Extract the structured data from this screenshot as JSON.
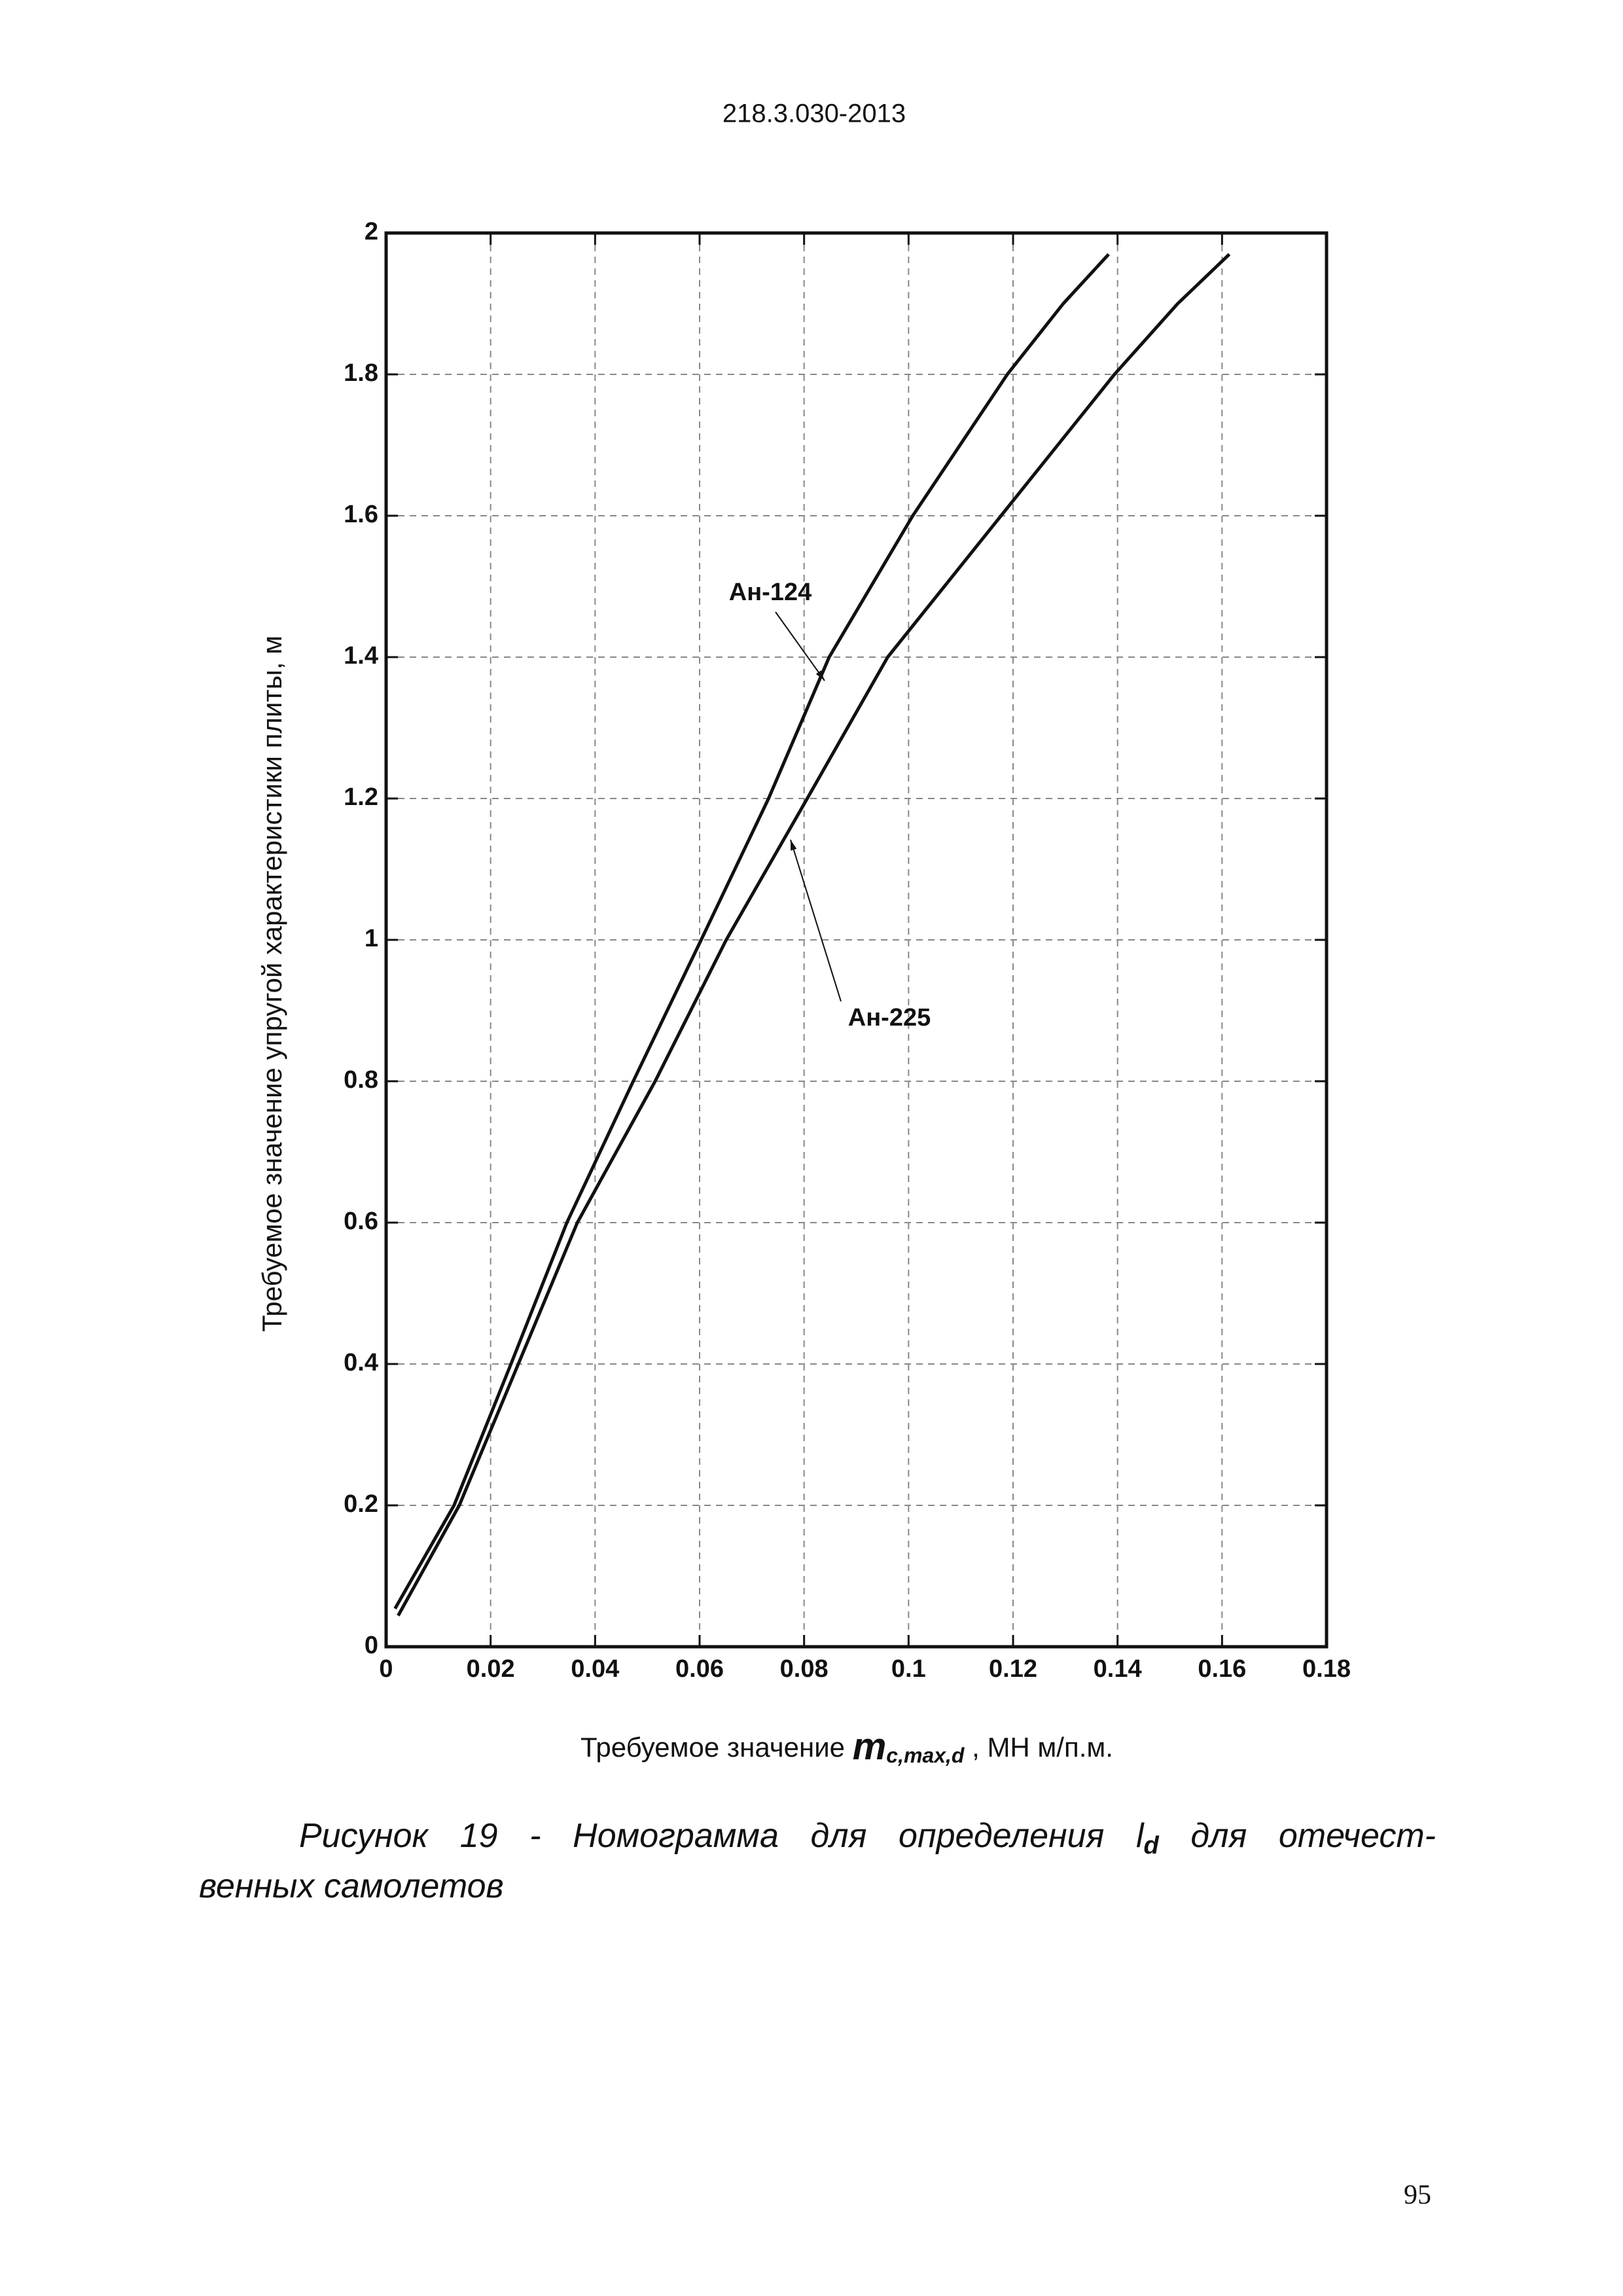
{
  "header": {
    "code": "218.3.030-2013"
  },
  "chart_data": {
    "type": "line",
    "y_label": "Требуемое значение упругой характеристики плиты, м",
    "x_label": {
      "prefix": "Требуемое значение ",
      "symbol": "m",
      "subscript": "c,max,d",
      "suffix": " , МН м/п.м."
    },
    "xlim": [
      0,
      0.18
    ],
    "xticks": [
      0,
      0.02,
      0.04,
      0.06,
      0.08,
      0.1,
      0.12,
      0.14,
      0.16,
      0.18
    ],
    "ylim": [
      0,
      2
    ],
    "yticks": [
      0,
      0.2,
      0.4,
      0.6,
      0.8,
      1,
      1.2,
      1.4,
      1.6,
      1.8,
      2
    ],
    "grid": true,
    "series": [
      {
        "name": "Ан-124",
        "color": "#111111",
        "x": [
          0.0017,
          0.013,
          0.0239,
          0.0346,
          0.0473,
          0.0603,
          0.0732,
          0.0848,
          0.1008,
          0.1189,
          0.1296,
          0.1383
        ],
        "values": [
          0.054,
          0.2,
          0.4,
          0.6,
          0.8,
          1.0,
          1.2,
          1.4,
          1.6,
          1.8,
          1.9,
          1.97
        ]
      },
      {
        "name": "Ан-225",
        "color": "#111111",
        "x": [
          0.0023,
          0.014,
          0.0253,
          0.0366,
          0.0515,
          0.0651,
          0.0806,
          0.096,
          0.1177,
          0.1394,
          0.1515,
          0.1614
        ],
        "values": [
          0.044,
          0.2,
          0.4,
          0.6,
          0.8,
          1.0,
          1.2,
          1.4,
          1.6,
          1.8,
          1.9,
          1.97
        ]
      }
    ]
  },
  "caption": {
    "before": "Рисунок 19 - Номограмма для определения ",
    "symbol": "l",
    "subscript": "d",
    "after": " для отечест-",
    "line2": "венных самолетов"
  },
  "page_number": "95"
}
